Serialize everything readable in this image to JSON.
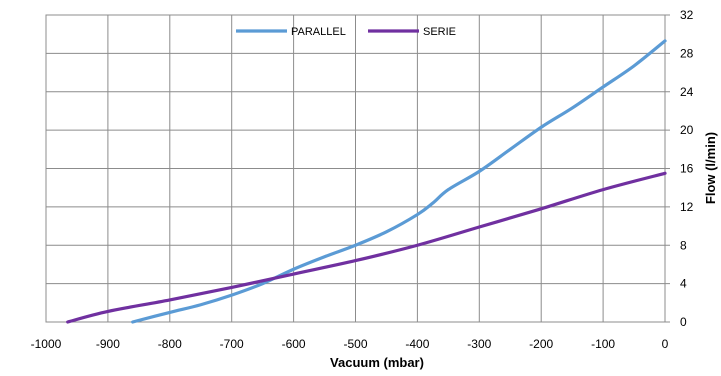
{
  "chart_data": {
    "type": "line",
    "xlabel": "Vacuum (mbar)",
    "ylabel": "Flow (l/min)",
    "xlim": [
      -1000,
      0
    ],
    "ylim": [
      0,
      32
    ],
    "x_ticks": [
      -1000,
      -900,
      -800,
      -700,
      -600,
      -500,
      -400,
      -300,
      -200,
      -100,
      0
    ],
    "y_ticks": [
      0,
      4,
      8,
      12,
      16,
      20,
      24,
      28,
      32
    ],
    "grid": true,
    "y_axis_side": "right",
    "legend": "top-center",
    "series": [
      {
        "name": "PARALLEL",
        "color": "#5B9BD5",
        "x": [
          -860,
          -800,
          -750,
          -700,
          -650,
          -600,
          -550,
          -500,
          -450,
          -400,
          -375,
          -350,
          -300,
          -250,
          -200,
          -150,
          -100,
          -50,
          0
        ],
        "y": [
          0,
          1.0,
          1.8,
          2.8,
          4.0,
          5.5,
          6.8,
          8.0,
          9.4,
          11.2,
          12.4,
          13.8,
          15.7,
          18.0,
          20.3,
          22.3,
          24.5,
          26.7,
          29.3
        ]
      },
      {
        "name": "SERIE",
        "color": "#7030A0",
        "x": [
          -965,
          -900,
          -800,
          -700,
          -600,
          -500,
          -400,
          -300,
          -200,
          -100,
          0
        ],
        "y": [
          0,
          1.1,
          2.3,
          3.6,
          5.0,
          6.4,
          8.0,
          9.9,
          11.8,
          13.8,
          15.5
        ]
      }
    ]
  }
}
